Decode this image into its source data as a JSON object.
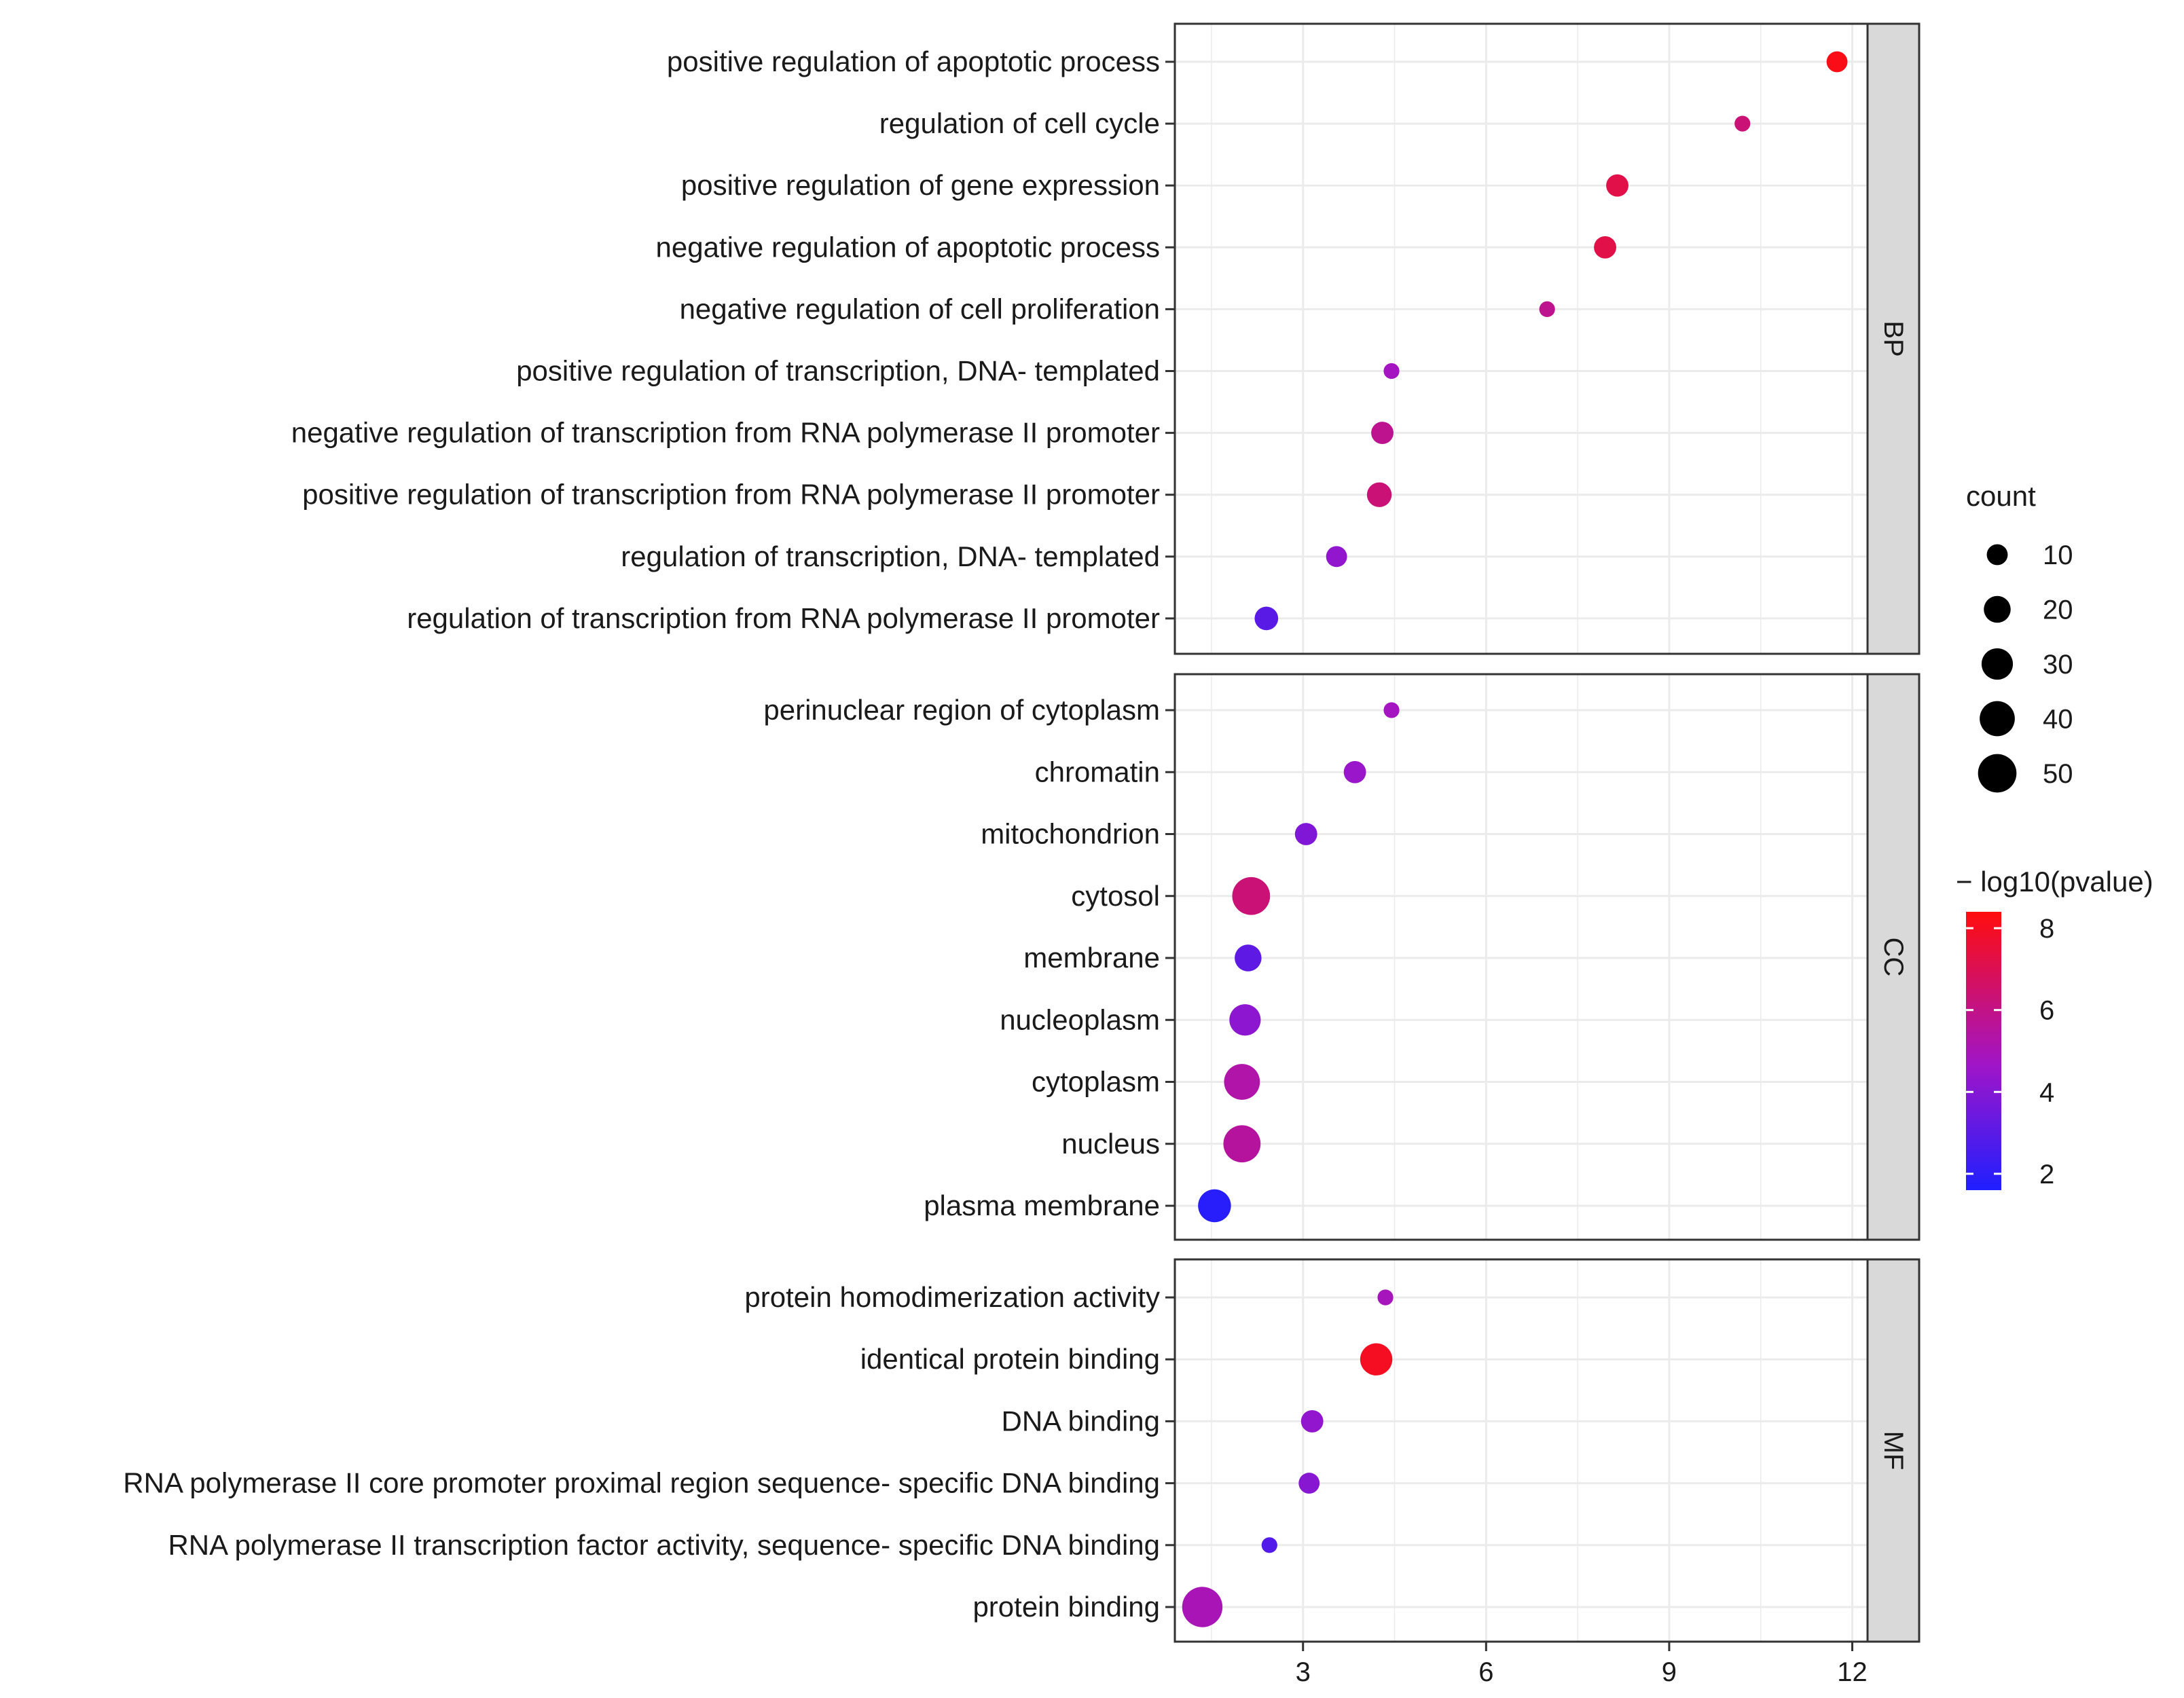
{
  "chart_data": {
    "type": "scatter",
    "title": "",
    "xlabel": "",
    "ylabel": "",
    "xlim": [
      0.9,
      12.25
    ],
    "x_ticks": [
      3,
      6,
      9,
      12
    ],
    "grid": true,
    "panels": [
      {
        "label": "BP",
        "points": [
          {
            "term": "positive regulation of apoptotic process",
            "x": 11.75,
            "count": 10,
            "neglog10p": 8.2
          },
          {
            "term": "regulation of cell cycle",
            "x": 10.2,
            "count": 4,
            "neglog10p": 6.3
          },
          {
            "term": "positive regulation of gene expression",
            "x": 8.15,
            "count": 12,
            "neglog10p": 7.2
          },
          {
            "term": "negative regulation of apoptotic process",
            "x": 7.95,
            "count": 12,
            "neglog10p": 7.2
          },
          {
            "term": "negative regulation of cell proliferation",
            "x": 7.0,
            "count": 4,
            "neglog10p": 5.8
          },
          {
            "term": "positive regulation of transcription, DNA- templated",
            "x": 4.45,
            "count": 4,
            "neglog10p": 4.8
          },
          {
            "term": "negative regulation of transcription from RNA polymerase II promoter",
            "x": 4.3,
            "count": 12,
            "neglog10p": 5.8
          },
          {
            "term": "positive regulation of transcription from RNA polymerase II promoter",
            "x": 4.25,
            "count": 16,
            "neglog10p": 6.3
          },
          {
            "term": "regulation of transcription, DNA- templated",
            "x": 3.55,
            "count": 10,
            "neglog10p": 4.3
          },
          {
            "term": "regulation of transcription from RNA polymerase II promoter",
            "x": 2.4,
            "count": 14,
            "neglog10p": 3.0
          }
        ]
      },
      {
        "label": "CC",
        "points": [
          {
            "term": "perinuclear region of cytoplasm",
            "x": 4.45,
            "count": 4,
            "neglog10p": 4.8
          },
          {
            "term": "chromatin",
            "x": 3.85,
            "count": 12,
            "neglog10p": 4.5
          },
          {
            "term": "mitochondrion",
            "x": 3.05,
            "count": 12,
            "neglog10p": 3.9
          },
          {
            "term": "cytosol",
            "x": 2.15,
            "count": 48,
            "neglog10p": 6.3
          },
          {
            "term": "membrane",
            "x": 2.1,
            "count": 20,
            "neglog10p": 3.1
          },
          {
            "term": "nucleoplasm",
            "x": 2.05,
            "count": 30,
            "neglog10p": 4.2
          },
          {
            "term": "cytoplasm",
            "x": 2.0,
            "count": 42,
            "neglog10p": 5.3
          },
          {
            "term": "nucleus",
            "x": 2.0,
            "count": 46,
            "neglog10p": 5.5
          },
          {
            "term": "plasma membrane",
            "x": 1.55,
            "count": 34,
            "neglog10p": 1.8
          }
        ]
      },
      {
        "label": "MF",
        "points": [
          {
            "term": "protein homodimerization activity",
            "x": 4.35,
            "count": 4,
            "neglog10p": 4.9
          },
          {
            "term": "identical protein binding",
            "x": 4.2,
            "count": 32,
            "neglog10p": 8.0
          },
          {
            "term": "DNA binding",
            "x": 3.15,
            "count": 12,
            "neglog10p": 4.3
          },
          {
            "term": "RNA polymerase II core promoter proximal region sequence- specific DNA binding",
            "x": 3.1,
            "count": 10,
            "neglog10p": 4.1
          },
          {
            "term": "RNA polymerase II transcription factor activity, sequence- specific DNA binding",
            "x": 2.45,
            "count": 4,
            "neglog10p": 2.8
          },
          {
            "term": "protein binding",
            "x": 1.35,
            "count": 56,
            "neglog10p": 5.0
          }
        ]
      }
    ],
    "size_legend": {
      "title": "count",
      "values": [
        10,
        20,
        30,
        40,
        50
      ]
    },
    "color_legend": {
      "title": "− log10(pvalue)",
      "ticks": [
        2,
        4,
        6,
        8
      ],
      "range": [
        1.6,
        8.4
      ],
      "low_color": "#1f1fff",
      "mid_color": "#a015c8",
      "high_color": "#ff0d0d"
    },
    "colors": {
      "panel_border": "#333333",
      "strip_fill": "#d9d9d9",
      "grid": "#ebebeb"
    }
  }
}
